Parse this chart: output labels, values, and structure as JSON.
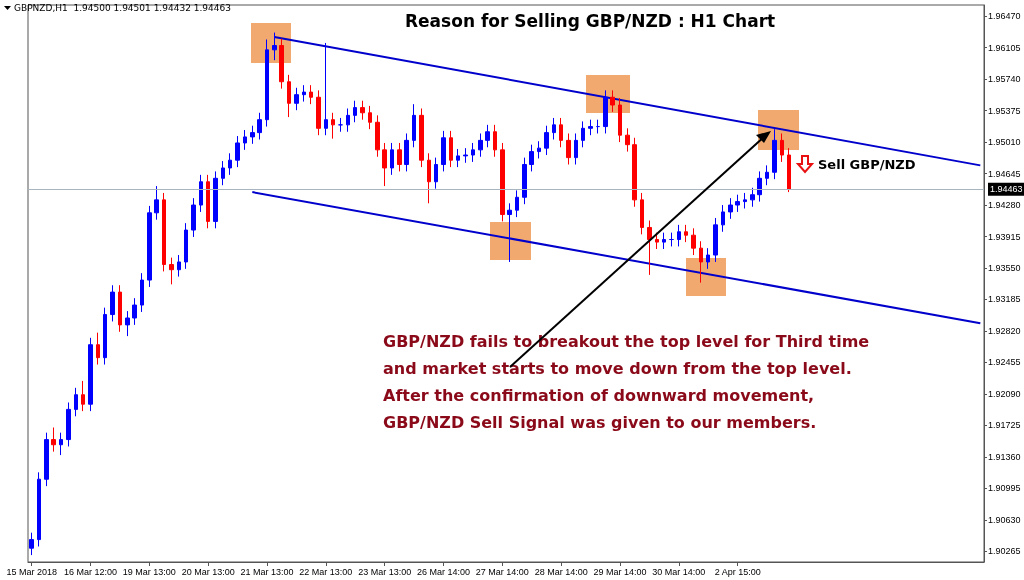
{
  "chart_data": {
    "type": "candlestick",
    "title": "Reason for Selling GBP/NZD : H1 Chart",
    "annotations": [
      "GBPNZD,H1  1.94500 1.94501 1.94432 1.94463",
      "Sell GBP/NZD",
      "GBP/NZD fails to breakout the top level for Third time\nand market starts to move down from the top level.\nAfter the confirmation of downward movement,\nGBP/NZD Sell Signal was given to our members."
    ],
    "categories": [
      "15 Mar 2018",
      null,
      null,
      null,
      null,
      null,
      null,
      null,
      "16 Mar 12:00",
      null,
      null,
      null,
      null,
      null,
      null,
      null,
      "19 Mar 13:00",
      null,
      null,
      null,
      null,
      null,
      null,
      null,
      "20 Mar 13:00",
      null,
      null,
      null,
      null,
      null,
      null,
      null,
      "21 Mar 13:00",
      null,
      null,
      null,
      null,
      null,
      null,
      null,
      "22 Mar 13:00",
      null,
      null,
      null,
      null,
      null,
      null,
      null,
      "23 Mar 13:00",
      null,
      null,
      null,
      null,
      null,
      null,
      null,
      "26 Mar 14:00",
      null,
      null,
      null,
      null,
      null,
      null,
      null,
      "27 Mar 14:00",
      null,
      null,
      null,
      null,
      null,
      null,
      null,
      "28 Mar 14:00",
      null,
      null,
      null,
      null,
      null,
      null,
      null,
      "29 Mar 14:00",
      null,
      null,
      null,
      null,
      null,
      null,
      null,
      "30 Mar 14:00",
      null,
      null,
      null,
      null,
      null,
      null,
      null,
      "2 Apr 15:00",
      null,
      null,
      null,
      null,
      null,
      null,
      null,
      null,
      null,
      null,
      null,
      null,
      null,
      null,
      null,
      null,
      null,
      null,
      null,
      null,
      null,
      null,
      null,
      null,
      null,
      null,
      null,
      null,
      null,
      null,
      null,
      null,
      null
    ],
    "ohlc": [
      [
        1.903,
        1.9048,
        1.9022,
        1.904
      ],
      [
        1.904,
        1.9118,
        1.9032,
        1.911
      ],
      [
        1.911,
        1.9164,
        1.9102,
        1.9156
      ],
      [
        1.9156,
        1.917,
        1.9142,
        1.915
      ],
      [
        1.915,
        1.9164,
        1.9138,
        1.9156
      ],
      [
        1.9156,
        1.9199,
        1.9148,
        1.9191
      ],
      [
        1.9191,
        1.9216,
        1.9183,
        1.9208
      ],
      [
        1.9208,
        1.9224,
        1.9189,
        1.9197
      ],
      [
        1.9197,
        1.9274,
        1.9189,
        1.9266
      ],
      [
        1.9266,
        1.928,
        1.9243,
        1.9251
      ],
      [
        1.9251,
        1.9309,
        1.9243,
        1.9301
      ],
      [
        1.9301,
        1.9335,
        1.9293,
        1.9327
      ],
      [
        1.9327,
        1.9335,
        1.9281,
        1.9289
      ],
      [
        1.9289,
        1.9305,
        1.9276,
        1.9297
      ],
      [
        1.9297,
        1.932,
        1.9289,
        1.9312
      ],
      [
        1.9312,
        1.9349,
        1.9304,
        1.9341
      ],
      [
        1.9341,
        1.9427,
        1.9333,
        1.9419
      ],
      [
        1.9419,
        1.945,
        1.9411,
        1.9434
      ],
      [
        1.9434,
        1.9442,
        1.9351,
        1.9359
      ],
      [
        1.9359,
        1.9367,
        1.9336,
        1.9353
      ],
      [
        1.9353,
        1.937,
        1.9345,
        1.9362
      ],
      [
        1.9362,
        1.9407,
        1.9354,
        1.9399
      ],
      [
        1.9399,
        1.9436,
        1.9391,
        1.9428
      ],
      [
        1.9428,
        1.9463,
        1.942,
        1.9455
      ],
      [
        1.9455,
        1.9463,
        1.9401,
        1.9409
      ],
      [
        1.9409,
        1.9467,
        1.9401,
        1.9459
      ],
      [
        1.9459,
        1.9479,
        1.9451,
        1.9471
      ],
      [
        1.9471,
        1.9488,
        1.9463,
        1.948
      ],
      [
        1.948,
        1.9508,
        1.9472,
        1.95
      ],
      [
        1.95,
        1.9515,
        1.9492,
        1.9507
      ],
      [
        1.9507,
        1.952,
        1.9499,
        1.9512
      ],
      [
        1.9512,
        1.9535,
        1.9504,
        1.9527
      ],
      [
        1.9527,
        1.962,
        1.9519,
        1.9608
      ],
      [
        1.9608,
        1.9628,
        1.9596,
        1.9613
      ],
      [
        1.9613,
        1.9621,
        1.9563,
        1.9571
      ],
      [
        1.9571,
        1.9579,
        1.953,
        1.9546
      ],
      [
        1.9546,
        1.9564,
        1.9538,
        1.9556
      ],
      [
        1.9556,
        1.9567,
        1.9548,
        1.9559
      ],
      [
        1.9559,
        1.9567,
        1.9545,
        1.9553
      ],
      [
        1.9553,
        1.9561,
        1.9509,
        1.9517
      ],
      [
        1.9517,
        1.9616,
        1.9509,
        1.9527
      ],
      [
        1.9527,
        1.9535,
        1.9505,
        1.9521
      ],
      [
        1.9521,
        1.9529,
        1.9513,
        1.9521
      ],
      [
        1.9521,
        1.954,
        1.9513,
        1.9532
      ],
      [
        1.9532,
        1.9549,
        1.9524,
        1.9541
      ],
      [
        1.9541,
        1.9549,
        1.9527,
        1.9535
      ],
      [
        1.9535,
        1.9543,
        1.9516,
        1.9524
      ],
      [
        1.9524,
        1.9532,
        1.9484,
        1.9492
      ],
      [
        1.9492,
        1.95,
        1.945,
        1.9471
      ],
      [
        1.9471,
        1.95,
        1.9463,
        1.9492
      ],
      [
        1.9492,
        1.95,
        1.9467,
        1.9475
      ],
      [
        1.9475,
        1.9511,
        1.9467,
        1.9503
      ],
      [
        1.9503,
        1.9545,
        1.9495,
        1.9532
      ],
      [
        1.9532,
        1.954,
        1.9472,
        1.948
      ],
      [
        1.948,
        1.9488,
        1.943,
        1.9455
      ],
      [
        1.9455,
        1.9483,
        1.9447,
        1.9475
      ],
      [
        1.9475,
        1.9514,
        1.9467,
        1.9506
      ],
      [
        1.9506,
        1.9514,
        1.9472,
        1.948
      ],
      [
        1.948,
        1.9493,
        1.9472,
        1.9485
      ],
      [
        1.9485,
        1.9494,
        1.9477,
        1.9486
      ],
      [
        1.9486,
        1.95,
        1.9478,
        1.9492
      ],
      [
        1.9492,
        1.9511,
        1.9484,
        1.9503
      ],
      [
        1.9503,
        1.9521,
        1.9495,
        1.9513
      ],
      [
        1.9513,
        1.9521,
        1.9484,
        1.9492
      ],
      [
        1.9492,
        1.95,
        1.9409,
        1.9417
      ],
      [
        1.9417,
        1.943,
        1.9362,
        1.9422
      ],
      [
        1.9422,
        1.9445,
        1.9414,
        1.9437
      ],
      [
        1.9437,
        1.9483,
        1.9429,
        1.9475
      ],
      [
        1.9475,
        1.9498,
        1.9467,
        1.949
      ],
      [
        1.949,
        1.9502,
        1.9482,
        1.9494
      ],
      [
        1.9494,
        1.952,
        1.9486,
        1.9512
      ],
      [
        1.9512,
        1.9529,
        1.9504,
        1.9521
      ],
      [
        1.9521,
        1.9529,
        1.9495,
        1.9503
      ],
      [
        1.9503,
        1.9511,
        1.9475,
        1.9483
      ],
      [
        1.9483,
        1.9511,
        1.9475,
        1.9503
      ],
      [
        1.9503,
        1.9525,
        1.9495,
        1.9517
      ],
      [
        1.9517,
        1.9527,
        1.9509,
        1.9519
      ],
      [
        1.9519,
        1.9527,
        1.9511,
        1.9519
      ],
      [
        1.9519,
        1.9561,
        1.9511,
        1.9553
      ],
      [
        1.9553,
        1.9561,
        1.9536,
        1.9544
      ],
      [
        1.9544,
        1.9552,
        1.9501,
        1.9509
      ],
      [
        1.9509,
        1.9517,
        1.949,
        1.9498
      ],
      [
        1.9498,
        1.9506,
        1.9426,
        1.9434
      ],
      [
        1.9434,
        1.9442,
        1.9394,
        1.9402
      ],
      [
        1.9402,
        1.941,
        1.9347,
        1.9388
      ],
      [
        1.9388,
        1.9396,
        1.9377,
        1.9385
      ],
      [
        1.9385,
        1.9396,
        1.9377,
        1.9388
      ],
      [
        1.9388,
        1.9396,
        1.938,
        1.9388
      ],
      [
        1.9388,
        1.9405,
        1.938,
        1.9397
      ],
      [
        1.9397,
        1.9405,
        1.9385,
        1.9393
      ],
      [
        1.9393,
        1.9401,
        1.937,
        1.9378
      ],
      [
        1.9378,
        1.9386,
        1.9338,
        1.9362
      ],
      [
        1.9362,
        1.9378,
        1.9354,
        1.937
      ],
      [
        1.937,
        1.9413,
        1.9362,
        1.9405
      ],
      [
        1.9405,
        1.9428,
        1.9397,
        1.942
      ],
      [
        1.942,
        1.9436,
        1.9412,
        1.9428
      ],
      [
        1.9428,
        1.944,
        1.942,
        1.9432
      ],
      [
        1.9432,
        1.9442,
        1.9424,
        1.9434
      ],
      [
        1.9434,
        1.9448,
        1.9426,
        1.944
      ],
      [
        1.944,
        1.9467,
        1.9432,
        1.9459
      ],
      [
        1.9459,
        1.9474,
        1.9451,
        1.9466
      ],
      [
        1.9466,
        1.9516,
        1.9458,
        1.9503
      ],
      [
        1.9503,
        1.9511,
        1.9478,
        1.9486
      ],
      [
        1.9486,
        1.9494,
        1.9443,
        1.9446
      ],
      null,
      null,
      null,
      null,
      null,
      null,
      null,
      null,
      null,
      null,
      null,
      null,
      null,
      null,
      null,
      null,
      null,
      null,
      null,
      null,
      null,
      null,
      null,
      null,
      null,
      null
    ],
    "colors": [
      "#0000ff",
      "#0000ff",
      "#0000ff",
      "#ff0000",
      "#0000ff",
      "#0000ff",
      "#0000ff",
      "#ff0000",
      "#0000ff",
      "#ff0000",
      "#0000ff",
      "#0000ff",
      "#ff0000",
      "#0000ff",
      "#0000ff",
      "#0000ff",
      "#0000ff",
      "#0000ff",
      "#ff0000",
      "#ff0000",
      "#0000ff",
      "#0000ff",
      "#0000ff",
      "#0000ff",
      "#ff0000",
      "#0000ff",
      "#0000ff",
      "#0000ff",
      "#0000ff",
      "#0000ff",
      "#0000ff",
      "#0000ff",
      "#0000ff",
      "#0000ff",
      "#ff0000",
      "#ff0000",
      "#0000ff",
      "#0000ff",
      "#ff0000",
      "#ff0000",
      "#0000ff",
      "#ff0000",
      "#0000ff",
      "#0000ff",
      "#0000ff",
      "#ff0000",
      "#ff0000",
      "#ff0000",
      "#ff0000",
      "#0000ff",
      "#ff0000",
      "#0000ff",
      "#0000ff",
      "#ff0000",
      "#ff0000",
      "#0000ff",
      "#0000ff",
      "#ff0000",
      "#0000ff",
      "#0000ff",
      "#0000ff",
      "#0000ff",
      "#0000ff",
      "#ff0000",
      "#ff0000",
      "#0000ff",
      "#0000ff",
      "#0000ff",
      "#0000ff",
      "#0000ff",
      "#0000ff",
      "#0000ff",
      "#ff0000",
      "#ff0000",
      "#0000ff",
      "#0000ff",
      "#0000ff",
      "#0000ff",
      "#0000ff",
      "#ff0000",
      "#ff0000",
      "#ff0000",
      "#ff0000",
      "#ff0000",
      "#ff0000",
      "#ff0000",
      "#0000ff",
      "#0000ff",
      "#0000ff",
      "#ff0000",
      "#ff0000",
      "#ff0000",
      "#0000ff",
      "#0000ff",
      "#0000ff",
      "#0000ff",
      "#0000ff",
      "#0000ff",
      "#0000ff",
      "#0000ff",
      "#0000ff",
      "#0000ff",
      "#ff0000",
      "#ff0000",
      null,
      null,
      null,
      null,
      null,
      null,
      null,
      null,
      null,
      null,
      null,
      null,
      null,
      null,
      null,
      null,
      null,
      null,
      null,
      null,
      null,
      null,
      null,
      null,
      null,
      null
    ],
    "series": [
      {
        "type": "line",
        "color": "#0000cc",
        "values": [
          null,
          null,
          null,
          null,
          null,
          null,
          null,
          null,
          null,
          null,
          null,
          null,
          null,
          null,
          null,
          null,
          null,
          null,
          null,
          null,
          null,
          null,
          null,
          null,
          null,
          null,
          null,
          null,
          null,
          null,
          null,
          null,
          null,
          1.9623,
          null,
          null,
          null,
          null,
          null,
          null,
          null,
          null,
          null,
          null,
          null,
          null,
          null,
          null,
          null,
          null,
          null,
          null,
          null,
          null,
          null,
          null,
          null,
          null,
          null,
          null,
          null,
          null,
          null,
          null,
          null,
          null,
          null,
          null,
          null,
          null,
          null,
          null,
          null,
          null,
          null,
          null,
          null,
          null,
          null,
          null,
          null,
          null,
          null,
          null,
          null,
          null,
          null,
          null,
          null,
          null,
          null,
          null,
          null,
          null,
          null,
          null,
          null,
          null,
          null,
          null,
          null,
          null,
          null,
          null,
          null,
          null,
          null,
          null,
          null,
          null,
          null,
          null,
          null,
          null,
          null,
          null,
          null,
          null,
          null,
          null,
          null,
          null,
          null,
          null,
          null,
          null,
          null,
          null,
          null,
          1.9474
        ]
      },
      {
        "type": "line",
        "color": "#0000cc",
        "values": [
          null,
          null,
          null,
          null,
          null,
          null,
          null,
          null,
          null,
          null,
          null,
          null,
          null,
          null,
          null,
          null,
          null,
          null,
          null,
          null,
          null,
          null,
          null,
          null,
          null,
          null,
          null,
          null,
          null,
          null,
          1.9443,
          null,
          null,
          null,
          null,
          null,
          null,
          null,
          null,
          null,
          null,
          null,
          null,
          null,
          null,
          null,
          null,
          null,
          null,
          null,
          null,
          null,
          null,
          null,
          null,
          null,
          null,
          null,
          null,
          null,
          null,
          null,
          null,
          null,
          null,
          null,
          null,
          null,
          null,
          null,
          null,
          null,
          null,
          null,
          null,
          null,
          null,
          null,
          null,
          null,
          null,
          null,
          null,
          null,
          null,
          null,
          null,
          null,
          null,
          null,
          null,
          null,
          null,
          null,
          null,
          null,
          null,
          null,
          null,
          null,
          null,
          null,
          null,
          null,
          null,
          null,
          null,
          null,
          null,
          null,
          null,
          null,
          null,
          null,
          null,
          null,
          null,
          null,
          null,
          null,
          null,
          null,
          null,
          null,
          null,
          null,
          null,
          null,
          null,
          1.9291
        ]
      }
    ],
    "ylim": [
      1.9014,
      1.966
    ],
    "yticks": [
      {
        "value": 1.9647,
        "label": "1.96470"
      },
      {
        "value": 1.96105,
        "label": "1.96105"
      },
      {
        "value": 1.9574,
        "label": "1.95740"
      },
      {
        "value": 1.95375,
        "label": "1.95375"
      },
      {
        "value": 1.9501,
        "label": "1.95010"
      },
      {
        "value": 1.94645,
        "label": "1.94645"
      },
      {
        "value": 1.9428,
        "label": "1.94280"
      },
      {
        "value": 1.93915,
        "label": "1.93915"
      },
      {
        "value": 1.9355,
        "label": "1.93550"
      },
      {
        "value": 1.93185,
        "label": "1.93185"
      },
      {
        "value": 1.9282,
        "label": "1.92820"
      },
      {
        "value": 1.92455,
        "label": "1.92455"
      },
      {
        "value": 1.9209,
        "label": "1.92090"
      },
      {
        "value": 1.91725,
        "label": "1.91725"
      },
      {
        "value": 1.9136,
        "label": "1.91360"
      },
      {
        "value": 1.90995,
        "label": "1.90995"
      },
      {
        "value": 1.9063,
        "label": "1.90630"
      },
      {
        "value": 1.90265,
        "label": "1.90265"
      }
    ],
    "ref_lines": [
      {
        "axis": "y",
        "value": 1.94463,
        "label": "1.94463",
        "color": "#a8b4c0"
      }
    ]
  }
}
